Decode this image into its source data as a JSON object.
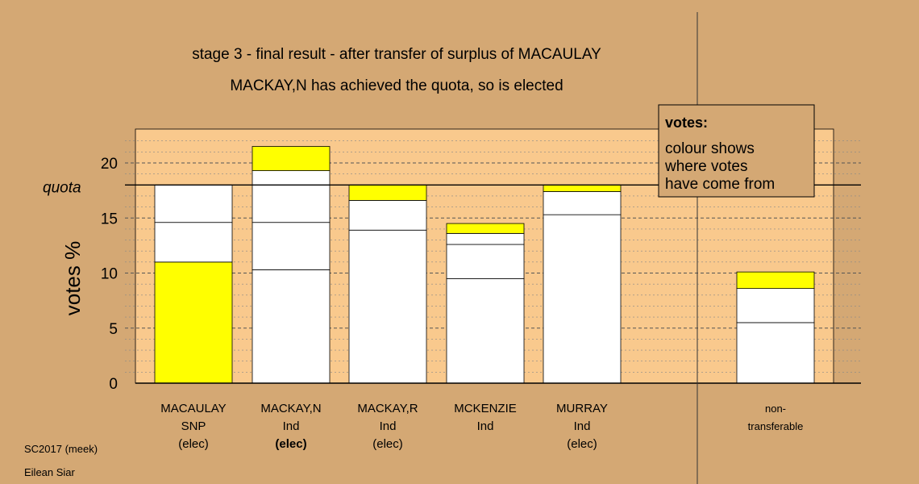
{
  "title_line1": "stage 3 - final result - after transfer of surplus of MACAULAY",
  "title_line2": "MACKAY,N has achieved the quota, so is elected",
  "footer": {
    "line1": "SC2017 (meek)",
    "line2": "Eilean Siar"
  },
  "legend": {
    "title": "votes:",
    "lines": [
      "colour shows",
      "where votes",
      "have come from"
    ]
  },
  "colors": {
    "background": "#d4a874",
    "plot_background": "#f9c98d",
    "segment_white": "#ffffff",
    "segment_yellow": "#ffff00"
  },
  "chart_data": {
    "type": "bar",
    "stacked": true,
    "ylabel": "votes %",
    "ylim": [
      0,
      22.5
    ],
    "yticks": [
      0,
      5,
      10,
      15,
      20
    ],
    "quota": 18,
    "quota_label": "quota",
    "grid": "dashed-horizontal",
    "legend_position": "top-right",
    "bars": [
      {
        "label_lines": [
          "MACAULAY",
          "SNP",
          "(elec)"
        ],
        "bold_line": -1,
        "segments": [
          {
            "value": 11.0,
            "color": "yellow"
          },
          {
            "value": 3.6,
            "color": "white"
          },
          {
            "value": 3.4,
            "color": "white"
          }
        ]
      },
      {
        "label_lines": [
          "MACKAY,N",
          "Ind",
          "(elec)"
        ],
        "bold_line": 2,
        "segments": [
          {
            "value": 10.3,
            "color": "white"
          },
          {
            "value": 4.3,
            "color": "white"
          },
          {
            "value": 4.7,
            "color": "white"
          },
          {
            "value": 2.2,
            "color": "yellow"
          }
        ]
      },
      {
        "label_lines": [
          "MACKAY,R",
          "Ind",
          "(elec)"
        ],
        "bold_line": -1,
        "segments": [
          {
            "value": 13.9,
            "color": "white"
          },
          {
            "value": 2.7,
            "color": "white"
          },
          {
            "value": 1.4,
            "color": "yellow"
          }
        ]
      },
      {
        "label_lines": [
          "MCKENZIE",
          "Ind"
        ],
        "bold_line": -1,
        "segments": [
          {
            "value": 9.5,
            "color": "white"
          },
          {
            "value": 3.1,
            "color": "white"
          },
          {
            "value": 1.0,
            "color": "white"
          },
          {
            "value": 0.9,
            "color": "yellow"
          }
        ]
      },
      {
        "label_lines": [
          "MURRAY",
          "Ind",
          "(elec)"
        ],
        "bold_line": -1,
        "segments": [
          {
            "value": 15.3,
            "color": "white"
          },
          {
            "value": 2.1,
            "color": "white"
          },
          {
            "value": 0.6,
            "color": "yellow"
          }
        ]
      },
      {
        "label_lines": [
          "non-",
          "transferable"
        ],
        "bold_line": -1,
        "segments": [
          {
            "value": 5.5,
            "color": "white"
          },
          {
            "value": 3.1,
            "color": "white"
          },
          {
            "value": 1.5,
            "color": "yellow"
          }
        ]
      }
    ]
  }
}
